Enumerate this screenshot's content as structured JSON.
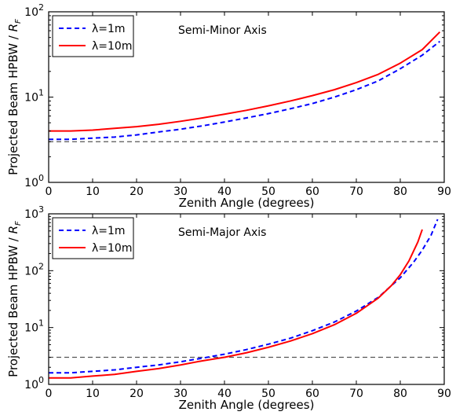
{
  "chart_data": [
    {
      "type": "line",
      "yscale": "log",
      "xlabel": "Zenith Angle (degrees)",
      "ylabel": "Projected Beam HPBW / R_F",
      "xlim": [
        0,
        90
      ],
      "ylim": [
        1,
        100
      ],
      "x_ticks": [
        "0",
        "10",
        "20",
        "30",
        "40",
        "50",
        "60",
        "70",
        "80",
        "90"
      ],
      "y_ticks": [
        "10^0",
        "10^1",
        "10^2"
      ],
      "annotation": "Semi-Minor Axis",
      "legend_position": "top-left",
      "reference_line": {
        "y": 3,
        "color": "#555555",
        "style": "dashed"
      },
      "series": [
        {
          "name": "λ=1m",
          "color": "#0000ff",
          "style": "dashed",
          "x": [
            0,
            5,
            10,
            15,
            20,
            25,
            30,
            35,
            40,
            45,
            50,
            55,
            60,
            65,
            70,
            75,
            80,
            85,
            89
          ],
          "values": [
            3.2,
            3.2,
            3.3,
            3.4,
            3.6,
            3.9,
            4.2,
            4.6,
            5.1,
            5.7,
            6.4,
            7.3,
            8.4,
            10.0,
            12.2,
            15.5,
            21.5,
            31.0,
            45.0
          ]
        },
        {
          "name": "λ=10m",
          "color": "#ff0000",
          "style": "solid",
          "x": [
            0,
            5,
            10,
            15,
            20,
            25,
            30,
            35,
            40,
            45,
            50,
            55,
            60,
            65,
            70,
            75,
            80,
            85,
            89
          ],
          "values": [
            4.0,
            4.0,
            4.1,
            4.3,
            4.5,
            4.8,
            5.2,
            5.7,
            6.3,
            7.0,
            7.9,
            9.0,
            10.4,
            12.2,
            14.8,
            18.5,
            25.0,
            36.0,
            58.0
          ]
        }
      ]
    },
    {
      "type": "line",
      "yscale": "log",
      "xlabel": "Zenith Angle (degrees)",
      "ylabel": "Projected Beam HPBW / R_F",
      "xlim": [
        0,
        90
      ],
      "ylim": [
        1,
        1000
      ],
      "x_ticks": [
        "0",
        "10",
        "20",
        "30",
        "40",
        "50",
        "60",
        "70",
        "80",
        "90"
      ],
      "y_ticks": [
        "10^0",
        "10^1",
        "10^2",
        "10^3"
      ],
      "annotation": "Semi-Major Axis",
      "legend_position": "top-left",
      "reference_line": {
        "y": 3,
        "color": "#555555",
        "style": "dashed"
      },
      "series": [
        {
          "name": "λ=1m",
          "color": "#0000ff",
          "style": "dashed",
          "x": [
            0,
            5,
            10,
            15,
            20,
            25,
            30,
            35,
            40,
            45,
            50,
            55,
            60,
            65,
            70,
            75,
            80,
            83,
            85,
            87,
            88.5
          ],
          "values": [
            1.6,
            1.6,
            1.7,
            1.8,
            2.0,
            2.2,
            2.5,
            2.9,
            3.4,
            4.1,
            5.1,
            6.5,
            8.8,
            12.5,
            19.5,
            34.0,
            75.0,
            140.0,
            230.0,
            420.0,
            800.0
          ]
        },
        {
          "name": "λ=10m",
          "color": "#ff0000",
          "style": "solid",
          "x": [
            0,
            5,
            10,
            15,
            20,
            25,
            30,
            35,
            40,
            45,
            50,
            55,
            60,
            65,
            70,
            75,
            78,
            80,
            82,
            84,
            85
          ],
          "values": [
            1.3,
            1.3,
            1.4,
            1.5,
            1.7,
            1.9,
            2.2,
            2.6,
            3.0,
            3.6,
            4.5,
            5.8,
            7.8,
            11.2,
            17.8,
            33.0,
            55.0,
            85.0,
            150.0,
            320.0,
            530.0
          ]
        }
      ]
    }
  ]
}
